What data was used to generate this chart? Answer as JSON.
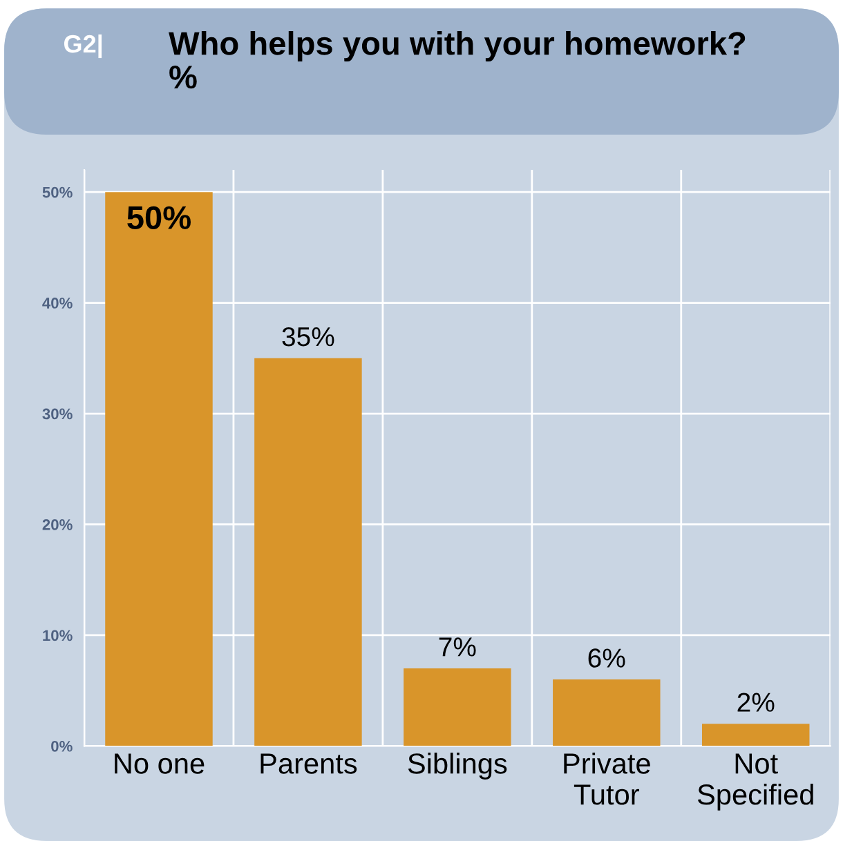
{
  "chart_data": {
    "type": "bar",
    "title": "Who helps you with your homework?",
    "subtitle": "%",
    "annotations": [
      "G2|"
    ],
    "categories": [
      "No one",
      "Parents",
      "Siblings",
      "Private\nTutor",
      "Not\nSpecified"
    ],
    "values": [
      50,
      35,
      7,
      6,
      2
    ],
    "color": "#d9952a",
    "ylim": [
      0,
      52
    ],
    "yticks": [
      {
        "value": 0,
        "label": "0%"
      },
      {
        "value": 10,
        "label": "10%"
      },
      {
        "value": 20,
        "label": "20%"
      },
      {
        "value": 30,
        "label": "30%"
      },
      {
        "value": 40,
        "label": "40%"
      },
      {
        "value": 50,
        "label": "50%"
      }
    ],
    "grid": true,
    "value_labels": [
      "50%",
      "35%",
      "7%",
      "6%",
      "2%"
    ]
  }
}
